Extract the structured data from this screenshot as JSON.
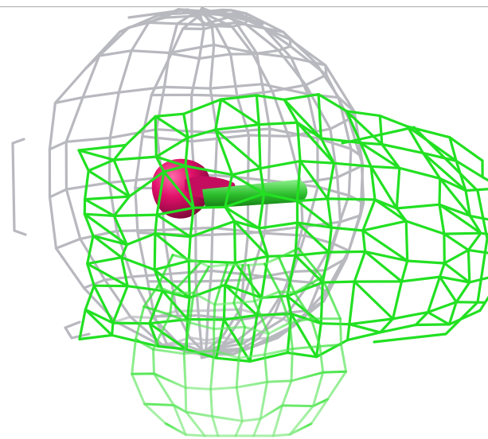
{
  "scene": {
    "background": "#ffffff",
    "frame_rule_color": "#a9a9a9",
    "gray_mesh": {
      "name": "gray-wireframe-surface",
      "color": "#b8b8bf",
      "shadow": "#7d7d86"
    },
    "green_mesh": {
      "name": "green-wireframe-surface",
      "color": "#22e022",
      "light": "#8ef08e"
    },
    "ligand": {
      "name": "magenta-ligand",
      "color": "#e0106a",
      "dark": "#8a0a40"
    },
    "stick": {
      "name": "green-stick-bond",
      "color": "#2ec02e"
    }
  }
}
